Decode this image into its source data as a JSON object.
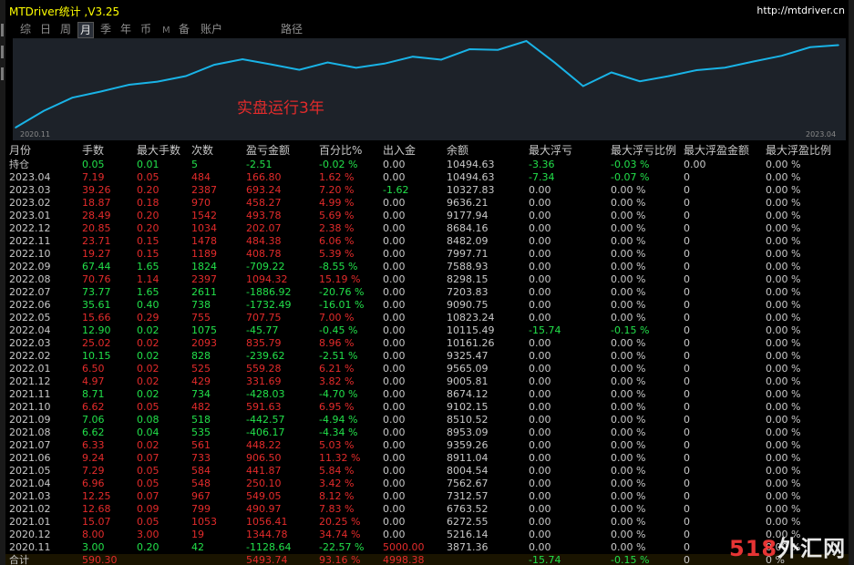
{
  "app": {
    "title": "MTDriver统计 ,V3.25",
    "url": "http://mtdriver.cn"
  },
  "tabs": [
    {
      "label": "综",
      "active": false
    },
    {
      "label": "日",
      "active": false
    },
    {
      "label": "周",
      "active": false
    },
    {
      "label": "月",
      "active": true
    },
    {
      "label": "季",
      "active": false
    },
    {
      "label": "年",
      "active": false
    },
    {
      "label": "币",
      "active": false
    },
    {
      "label": "M",
      "active": false
    },
    {
      "label": "备",
      "active": false
    },
    {
      "label": "账户",
      "active": false
    },
    {
      "label": "路径",
      "active": false
    }
  ],
  "chart": {
    "annotation": "实盘运行3年",
    "x_start_label": "2020.11",
    "x_end_label": "2023.04",
    "line_color": "#19b3e6",
    "bg_color": "#1d2229"
  },
  "chart_data": {
    "type": "line",
    "x": [
      "2020.11",
      "2020.12",
      "2021.01",
      "2021.02",
      "2021.03",
      "2021.04",
      "2021.05",
      "2021.06",
      "2021.07",
      "2021.08",
      "2021.09",
      "2021.10",
      "2021.11",
      "2021.12",
      "2022.01",
      "2022.02",
      "2022.03",
      "2022.04",
      "2022.05",
      "2022.06",
      "2022.07",
      "2022.08",
      "2022.09",
      "2022.10",
      "2022.11",
      "2022.12",
      "2023.01",
      "2023.02",
      "2023.03",
      "2023.04"
    ],
    "series": [
      {
        "values": [
          3871.36,
          5216.14,
          6272.55,
          6763.52,
          7312.57,
          7562.67,
          8004.54,
          8911.04,
          9359.26,
          8953.09,
          8510.52,
          9102.15,
          8674.12,
          9005.81,
          9565.09,
          9325.47,
          10161.26,
          10115.49,
          10823.24,
          9090.75,
          7203.83,
          8298.15,
          7588.93,
          7997.71,
          8482.09,
          8684.16,
          9177.94,
          9636.21,
          10327.83,
          10494.63
        ]
      }
    ],
    "xlabel": "",
    "ylabel": ""
  },
  "table": {
    "headers": [
      "月份",
      "手数",
      "最大手数",
      "次数",
      "盈亏金额",
      "百分比%",
      "出入金",
      "余额",
      "最大浮亏",
      "最大浮亏比例",
      "最大浮盈金额",
      "最大浮盈比例"
    ],
    "rows": [
      {
        "cells": [
          "持仓",
          "0.05",
          "0.01",
          "5",
          "-2.51",
          "-0.02 %",
          "0.00",
          "10494.63",
          "-3.36",
          "-0.03 %",
          "0.00",
          "0.00 %"
        ],
        "colors": [
          "w",
          "g",
          "g",
          "g",
          "g",
          "g",
          "w",
          "w",
          "g",
          "g",
          "w",
          "w"
        ]
      },
      {
        "cells": [
          "2023.04",
          "7.19",
          "0.05",
          "484",
          "166.80",
          "1.62 %",
          "0.00",
          "10494.63",
          "-7.34",
          "-0.07 %",
          "0",
          "0.00 %"
        ],
        "colors": [
          "w",
          "r",
          "r",
          "r",
          "r",
          "r",
          "w",
          "w",
          "g",
          "g",
          "w",
          "w"
        ]
      },
      {
        "cells": [
          "2023.03",
          "39.26",
          "0.20",
          "2387",
          "693.24",
          "7.20 %",
          "-1.62",
          "10327.83",
          "0.00",
          "0.00 %",
          "0",
          "0.00 %"
        ],
        "colors": [
          "w",
          "r",
          "r",
          "r",
          "r",
          "r",
          "g",
          "w",
          "w",
          "w",
          "w",
          "w"
        ]
      },
      {
        "cells": [
          "2023.02",
          "18.87",
          "0.18",
          "970",
          "458.27",
          "4.99 %",
          "0.00",
          "9636.21",
          "0.00",
          "0.00 %",
          "0",
          "0.00 %"
        ],
        "colors": [
          "w",
          "r",
          "r",
          "r",
          "r",
          "r",
          "w",
          "w",
          "w",
          "w",
          "w",
          "w"
        ]
      },
      {
        "cells": [
          "2023.01",
          "28.49",
          "0.20",
          "1542",
          "493.78",
          "5.69 %",
          "0.00",
          "9177.94",
          "0.00",
          "0.00 %",
          "0",
          "0.00 %"
        ],
        "colors": [
          "w",
          "r",
          "r",
          "r",
          "r",
          "r",
          "w",
          "w",
          "w",
          "w",
          "w",
          "w"
        ]
      },
      {
        "cells": [
          "2022.12",
          "20.85",
          "0.20",
          "1034",
          "202.07",
          "2.38 %",
          "0.00",
          "8684.16",
          "0.00",
          "0.00 %",
          "0",
          "0.00 %"
        ],
        "colors": [
          "w",
          "r",
          "r",
          "r",
          "r",
          "r",
          "w",
          "w",
          "w",
          "w",
          "w",
          "w"
        ]
      },
      {
        "cells": [
          "2022.11",
          "23.71",
          "0.15",
          "1478",
          "484.38",
          "6.06 %",
          "0.00",
          "8482.09",
          "0.00",
          "0.00 %",
          "0",
          "0.00 %"
        ],
        "colors": [
          "w",
          "r",
          "r",
          "r",
          "r",
          "r",
          "w",
          "w",
          "w",
          "w",
          "w",
          "w"
        ]
      },
      {
        "cells": [
          "2022.10",
          "19.27",
          "0.15",
          "1189",
          "408.78",
          "5.39 %",
          "0.00",
          "7997.71",
          "0.00",
          "0.00 %",
          "0",
          "0.00 %"
        ],
        "colors": [
          "w",
          "r",
          "r",
          "r",
          "r",
          "r",
          "w",
          "w",
          "w",
          "w",
          "w",
          "w"
        ]
      },
      {
        "cells": [
          "2022.09",
          "67.44",
          "1.65",
          "1824",
          "-709.22",
          "-8.55 %",
          "0.00",
          "7588.93",
          "0.00",
          "0.00 %",
          "0",
          "0.00 %"
        ],
        "colors": [
          "w",
          "g",
          "g",
          "g",
          "g",
          "g",
          "w",
          "w",
          "w",
          "w",
          "w",
          "w"
        ]
      },
      {
        "cells": [
          "2022.08",
          "70.76",
          "1.14",
          "2397",
          "1094.32",
          "15.19 %",
          "0.00",
          "8298.15",
          "0.00",
          "0.00 %",
          "0",
          "0.00 %"
        ],
        "colors": [
          "w",
          "r",
          "r",
          "r",
          "r",
          "r",
          "w",
          "w",
          "w",
          "w",
          "w",
          "w"
        ]
      },
      {
        "cells": [
          "2022.07",
          "73.77",
          "1.65",
          "2611",
          "-1886.92",
          "-20.76 %",
          "0.00",
          "7203.83",
          "0.00",
          "0.00 %",
          "0",
          "0.00 %"
        ],
        "colors": [
          "w",
          "g",
          "g",
          "g",
          "g",
          "g",
          "w",
          "w",
          "w",
          "w",
          "w",
          "w"
        ]
      },
      {
        "cells": [
          "2022.06",
          "35.61",
          "0.40",
          "738",
          "-1732.49",
          "-16.01 %",
          "0.00",
          "9090.75",
          "0.00",
          "0.00 %",
          "0",
          "0.00 %"
        ],
        "colors": [
          "w",
          "g",
          "g",
          "g",
          "g",
          "g",
          "w",
          "w",
          "w",
          "w",
          "w",
          "w"
        ]
      },
      {
        "cells": [
          "2022.05",
          "15.66",
          "0.29",
          "755",
          "707.75",
          "7.00 %",
          "0.00",
          "10823.24",
          "0.00",
          "0.00 %",
          "0",
          "0.00 %"
        ],
        "colors": [
          "w",
          "r",
          "r",
          "r",
          "r",
          "r",
          "w",
          "w",
          "w",
          "w",
          "w",
          "w"
        ]
      },
      {
        "cells": [
          "2022.04",
          "12.90",
          "0.02",
          "1075",
          "-45.77",
          "-0.45 %",
          "0.00",
          "10115.49",
          "-15.74",
          "-0.15 %",
          "0",
          "0.00 %"
        ],
        "colors": [
          "w",
          "g",
          "g",
          "g",
          "g",
          "g",
          "w",
          "w",
          "g",
          "g",
          "w",
          "w"
        ]
      },
      {
        "cells": [
          "2022.03",
          "25.02",
          "0.02",
          "2093",
          "835.79",
          "8.96 %",
          "0.00",
          "10161.26",
          "0.00",
          "0.00 %",
          "0",
          "0.00 %"
        ],
        "colors": [
          "w",
          "r",
          "r",
          "r",
          "r",
          "r",
          "w",
          "w",
          "w",
          "w",
          "w",
          "w"
        ]
      },
      {
        "cells": [
          "2022.02",
          "10.15",
          "0.02",
          "828",
          "-239.62",
          "-2.51 %",
          "0.00",
          "9325.47",
          "0.00",
          "0.00 %",
          "0",
          "0.00 %"
        ],
        "colors": [
          "w",
          "g",
          "g",
          "g",
          "g",
          "g",
          "w",
          "w",
          "w",
          "w",
          "w",
          "w"
        ]
      },
      {
        "cells": [
          "2022.01",
          "6.50",
          "0.02",
          "525",
          "559.28",
          "6.21 %",
          "0.00",
          "9565.09",
          "0.00",
          "0.00 %",
          "0",
          "0.00 %"
        ],
        "colors": [
          "w",
          "r",
          "r",
          "r",
          "r",
          "r",
          "w",
          "w",
          "w",
          "w",
          "w",
          "w"
        ]
      },
      {
        "cells": [
          "2021.12",
          "4.97",
          "0.02",
          "429",
          "331.69",
          "3.82 %",
          "0.00",
          "9005.81",
          "0.00",
          "0.00 %",
          "0",
          "0.00 %"
        ],
        "colors": [
          "w",
          "r",
          "r",
          "r",
          "r",
          "r",
          "w",
          "w",
          "w",
          "w",
          "w",
          "w"
        ]
      },
      {
        "cells": [
          "2021.11",
          "8.71",
          "0.02",
          "734",
          "-428.03",
          "-4.70 %",
          "0.00",
          "8674.12",
          "0.00",
          "0.00 %",
          "0",
          "0.00 %"
        ],
        "colors": [
          "w",
          "g",
          "g",
          "g",
          "g",
          "g",
          "w",
          "w",
          "w",
          "w",
          "w",
          "w"
        ]
      },
      {
        "cells": [
          "2021.10",
          "6.62",
          "0.05",
          "482",
          "591.63",
          "6.95 %",
          "0.00",
          "9102.15",
          "0.00",
          "0.00 %",
          "0",
          "0.00 %"
        ],
        "colors": [
          "w",
          "r",
          "r",
          "r",
          "r",
          "r",
          "w",
          "w",
          "w",
          "w",
          "w",
          "w"
        ]
      },
      {
        "cells": [
          "2021.09",
          "7.06",
          "0.08",
          "518",
          "-442.57",
          "-4.94 %",
          "0.00",
          "8510.52",
          "0.00",
          "0.00 %",
          "0",
          "0.00 %"
        ],
        "colors": [
          "w",
          "g",
          "g",
          "g",
          "g",
          "g",
          "w",
          "w",
          "w",
          "w",
          "w",
          "w"
        ]
      },
      {
        "cells": [
          "2021.08",
          "6.62",
          "0.04",
          "535",
          "-406.17",
          "-4.34 %",
          "0.00",
          "8953.09",
          "0.00",
          "0.00 %",
          "0",
          "0.00 %"
        ],
        "colors": [
          "w",
          "g",
          "g",
          "g",
          "g",
          "g",
          "w",
          "w",
          "w",
          "w",
          "w",
          "w"
        ]
      },
      {
        "cells": [
          "2021.07",
          "6.33",
          "0.02",
          "561",
          "448.22",
          "5.03 %",
          "0.00",
          "9359.26",
          "0.00",
          "0.00 %",
          "0",
          "0.00 %"
        ],
        "colors": [
          "w",
          "r",
          "r",
          "r",
          "r",
          "r",
          "w",
          "w",
          "w",
          "w",
          "w",
          "w"
        ]
      },
      {
        "cells": [
          "2021.06",
          "9.24",
          "0.07",
          "733",
          "906.50",
          "11.32 %",
          "0.00",
          "8911.04",
          "0.00",
          "0.00 %",
          "0",
          "0.00 %"
        ],
        "colors": [
          "w",
          "r",
          "r",
          "r",
          "r",
          "r",
          "w",
          "w",
          "w",
          "w",
          "w",
          "w"
        ]
      },
      {
        "cells": [
          "2021.05",
          "7.29",
          "0.05",
          "584",
          "441.87",
          "5.84 %",
          "0.00",
          "8004.54",
          "0.00",
          "0.00 %",
          "0",
          "0.00 %"
        ],
        "colors": [
          "w",
          "r",
          "r",
          "r",
          "r",
          "r",
          "w",
          "w",
          "w",
          "w",
          "w",
          "w"
        ]
      },
      {
        "cells": [
          "2021.04",
          "6.96",
          "0.05",
          "548",
          "250.10",
          "3.42 %",
          "0.00",
          "7562.67",
          "0.00",
          "0.00 %",
          "0",
          "0.00 %"
        ],
        "colors": [
          "w",
          "r",
          "r",
          "r",
          "r",
          "r",
          "w",
          "w",
          "w",
          "w",
          "w",
          "w"
        ]
      },
      {
        "cells": [
          "2021.03",
          "12.25",
          "0.07",
          "967",
          "549.05",
          "8.12 %",
          "0.00",
          "7312.57",
          "0.00",
          "0.00 %",
          "0",
          "0.00 %"
        ],
        "colors": [
          "w",
          "r",
          "r",
          "r",
          "r",
          "r",
          "w",
          "w",
          "w",
          "w",
          "w",
          "w"
        ]
      },
      {
        "cells": [
          "2021.02",
          "12.68",
          "0.09",
          "799",
          "490.97",
          "7.83 %",
          "0.00",
          "6763.52",
          "0.00",
          "0.00 %",
          "0",
          "0.00 %"
        ],
        "colors": [
          "w",
          "r",
          "r",
          "r",
          "r",
          "r",
          "w",
          "w",
          "w",
          "w",
          "w",
          "w"
        ]
      },
      {
        "cells": [
          "2021.01",
          "15.07",
          "0.05",
          "1053",
          "1056.41",
          "20.25 %",
          "0.00",
          "6272.55",
          "0.00",
          "0.00 %",
          "0",
          "0.00 %"
        ],
        "colors": [
          "w",
          "r",
          "r",
          "r",
          "r",
          "r",
          "w",
          "w",
          "w",
          "w",
          "w",
          "w"
        ]
      },
      {
        "cells": [
          "2020.12",
          "8.00",
          "3.00",
          "19",
          "1344.78",
          "34.74 %",
          "0.00",
          "5216.14",
          "0.00",
          "0.00 %",
          "0",
          "0.00 %"
        ],
        "colors": [
          "w",
          "r",
          "r",
          "r",
          "r",
          "r",
          "w",
          "w",
          "w",
          "w",
          "w",
          "w"
        ]
      },
      {
        "cells": [
          "2020.11",
          "3.00",
          "0.20",
          "42",
          "-1128.64",
          "-22.57 %",
          "5000.00",
          "3871.36",
          "0.00",
          "0.00 %",
          "0",
          "0.00 %"
        ],
        "colors": [
          "w",
          "g",
          "g",
          "g",
          "g",
          "g",
          "r",
          "w",
          "w",
          "w",
          "w",
          "w"
        ]
      }
    ],
    "summary": {
      "cells": [
        "合计",
        "590.30",
        "",
        "",
        "5493.74",
        "93.16 %",
        "4998.38",
        "",
        "-15.74",
        "-0.15 %",
        "0",
        "0 %"
      ],
      "colors": [
        "w",
        "r",
        "w",
        "w",
        "r",
        "r",
        "r",
        "w",
        "g",
        "g",
        "w",
        "w"
      ]
    }
  },
  "colors": {
    "positive_text": "#e32b2b",
    "negative_text": "#22e04a",
    "neutral_text": "#c8c8c8",
    "title_text": "#ffff00"
  },
  "watermark": {
    "number": "518",
    "text": "外汇网"
  }
}
